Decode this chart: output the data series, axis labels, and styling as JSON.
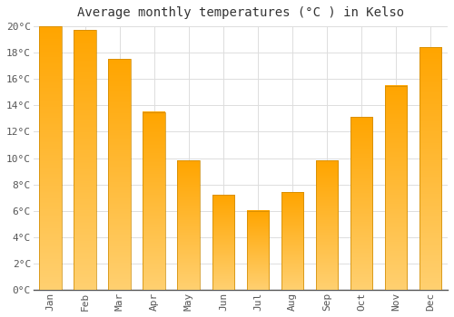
{
  "title": "Average monthly temperatures (°C ) in Kelso",
  "months": [
    "Jan",
    "Feb",
    "Mar",
    "Apr",
    "May",
    "Jun",
    "Jul",
    "Aug",
    "Sep",
    "Oct",
    "Nov",
    "Dec"
  ],
  "values": [
    20.0,
    19.7,
    17.5,
    13.5,
    9.8,
    7.2,
    6.0,
    7.4,
    9.8,
    13.1,
    15.5,
    18.4
  ],
  "bar_color_top": "#FFA500",
  "bar_color_bottom": "#FFD070",
  "bar_edge_color": "#CC8800",
  "background_color": "#FFFFFF",
  "plot_bg_color": "#FFFFFF",
  "grid_color": "#DDDDDD",
  "ylim": [
    0,
    20
  ],
  "ytick_step": 2,
  "title_fontsize": 10,
  "tick_fontsize": 8,
  "font_family": "monospace",
  "bar_width": 0.65
}
